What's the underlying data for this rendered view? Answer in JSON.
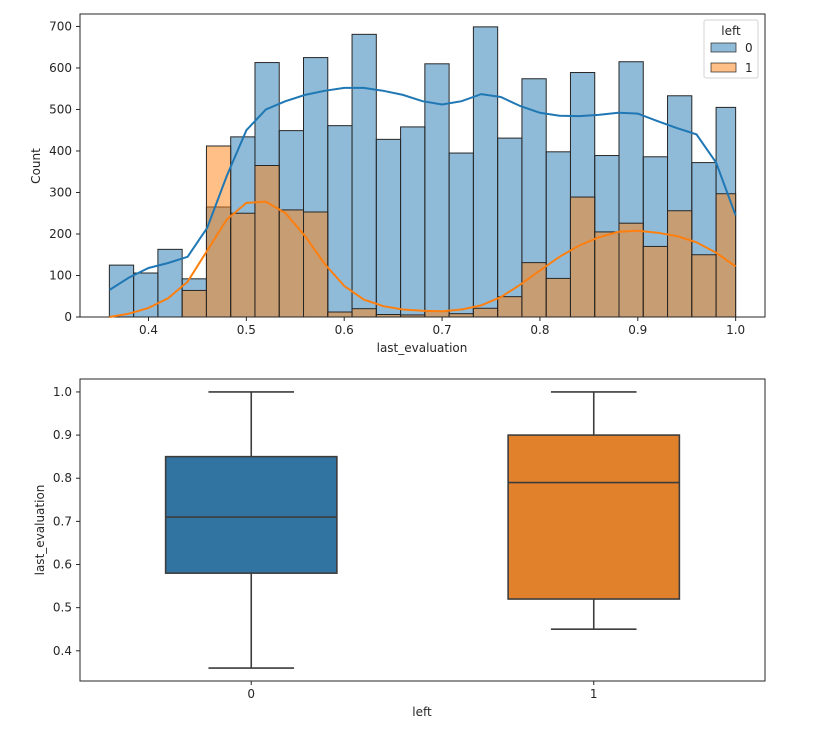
{
  "chart_data": [
    {
      "type": "histogram",
      "xlabel": "last_evaluation",
      "ylabel": "Count",
      "xlim": [
        0.33,
        1.03
      ],
      "ylim": [
        0,
        730
      ],
      "xticks": [
        "0.4",
        "0.5",
        "0.6",
        "0.7",
        "0.8",
        "0.9",
        "1.0"
      ],
      "yticks": [
        "0",
        "100",
        "200",
        "300",
        "400",
        "500",
        "600",
        "700"
      ],
      "bin_edges": [
        0.36,
        0.3848,
        0.4096,
        0.4344,
        0.4592,
        0.484,
        0.5088,
        0.5336,
        0.5584,
        0.5832,
        0.608,
        0.6328,
        0.6576,
        0.6824,
        0.7072,
        0.732,
        0.7568,
        0.7816,
        0.8064,
        0.8312,
        0.856,
        0.8808,
        0.9056,
        0.9304,
        0.9552,
        0.98,
        1.0
      ],
      "legend": {
        "title": "left",
        "position": "top-right",
        "entries": [
          "0",
          "1"
        ]
      },
      "series": [
        {
          "name": "0",
          "color": "#1f77b4",
          "counts": [
            125,
            106,
            163,
            92,
            265,
            434,
            613,
            449,
            625,
            461,
            681,
            428,
            458,
            610,
            395,
            699,
            431,
            574,
            398,
            589,
            389,
            615,
            386,
            533,
            372,
            505
          ],
          "kde": [
            [
              0.36,
              65
            ],
            [
              0.38,
              95
            ],
            [
              0.4,
              118
            ],
            [
              0.42,
              130
            ],
            [
              0.44,
              145
            ],
            [
              0.46,
              215
            ],
            [
              0.48,
              340
            ],
            [
              0.5,
              450
            ],
            [
              0.52,
              500
            ],
            [
              0.54,
              520
            ],
            [
              0.56,
              535
            ],
            [
              0.58,
              545
            ],
            [
              0.6,
              552
            ],
            [
              0.62,
              552
            ],
            [
              0.64,
              545
            ],
            [
              0.66,
              535
            ],
            [
              0.68,
              520
            ],
            [
              0.7,
              512
            ],
            [
              0.72,
              520
            ],
            [
              0.74,
              537
            ],
            [
              0.76,
              530
            ],
            [
              0.78,
              508
            ],
            [
              0.8,
              492
            ],
            [
              0.82,
              485
            ],
            [
              0.84,
              484
            ],
            [
              0.86,
              487
            ],
            [
              0.88,
              492
            ],
            [
              0.9,
              490
            ],
            [
              0.92,
              472
            ],
            [
              0.94,
              455
            ],
            [
              0.96,
              440
            ],
            [
              0.98,
              372
            ],
            [
              1.0,
              245
            ]
          ]
        },
        {
          "name": "1",
          "color": "#ff7f0e",
          "counts": [
            0,
            0,
            0,
            64,
            412,
            250,
            365,
            258,
            253,
            12,
            20,
            6,
            5,
            14,
            8,
            21,
            49,
            131,
            93,
            289,
            205,
            226,
            170,
            256,
            150,
            297
          ],
          "kde": [
            [
              0.36,
              0
            ],
            [
              0.38,
              8
            ],
            [
              0.4,
              22
            ],
            [
              0.42,
              45
            ],
            [
              0.44,
              85
            ],
            [
              0.46,
              160
            ],
            [
              0.48,
              235
            ],
            [
              0.5,
              275
            ],
            [
              0.52,
              278
            ],
            [
              0.54,
              250
            ],
            [
              0.56,
              195
            ],
            [
              0.58,
              128
            ],
            [
              0.6,
              75
            ],
            [
              0.62,
              42
            ],
            [
              0.64,
              26
            ],
            [
              0.66,
              18
            ],
            [
              0.68,
              15
            ],
            [
              0.7,
              14
            ],
            [
              0.72,
              18
            ],
            [
              0.74,
              28
            ],
            [
              0.76,
              48
            ],
            [
              0.78,
              78
            ],
            [
              0.8,
              112
            ],
            [
              0.82,
              145
            ],
            [
              0.84,
              172
            ],
            [
              0.86,
              192
            ],
            [
              0.88,
              205
            ],
            [
              0.9,
              208
            ],
            [
              0.92,
              203
            ],
            [
              0.94,
              195
            ],
            [
              0.96,
              180
            ],
            [
              0.98,
              155
            ],
            [
              1.0,
              122
            ]
          ]
        }
      ]
    },
    {
      "type": "box",
      "xlabel": "left",
      "ylabel": "last_evaluation",
      "ylim": [
        0.33,
        1.03
      ],
      "yticks": [
        "0.4",
        "0.5",
        "0.6",
        "0.7",
        "0.8",
        "0.9",
        "1.0"
      ],
      "categories": [
        "0",
        "1"
      ],
      "boxes": [
        {
          "category": "0",
          "color": "#3274a1",
          "whisker_low": 0.36,
          "q1": 0.58,
          "median": 0.71,
          "q3": 0.85,
          "whisker_high": 1.0
        },
        {
          "category": "1",
          "color": "#e1812c",
          "whisker_low": 0.45,
          "q1": 0.52,
          "median": 0.79,
          "q3": 0.9,
          "whisker_high": 1.0
        }
      ]
    }
  ]
}
